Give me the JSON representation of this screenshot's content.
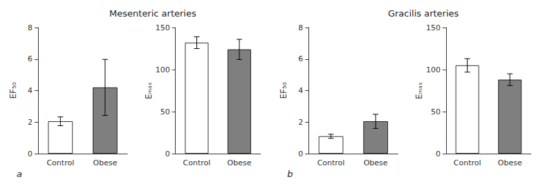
{
  "chart_data": [
    {
      "type": "bar",
      "title": "Mesenteric arteries",
      "annotations": [
        "a"
      ],
      "categories": [
        "Control",
        "Obese"
      ],
      "values": [
        2.05,
        4.2
      ],
      "errors": [
        0.28,
        1.78
      ],
      "colors": [
        "white",
        "#7f7f7f"
      ],
      "ylabel": "EF₅₀",
      "ylim": [
        0,
        8
      ],
      "yticks": [
        0,
        2,
        4,
        6,
        8
      ],
      "grid": false
    },
    {
      "type": "bar",
      "categories": [
        "Control",
        "Obese"
      ],
      "values": [
        132,
        124
      ],
      "errors": [
        7,
        12
      ],
      "colors": [
        "white",
        "#7f7f7f"
      ],
      "ylabel": "Eₘₐₓ",
      "ylim": [
        0,
        150
      ],
      "yticks": [
        0,
        50,
        100,
        150
      ],
      "grid": false
    },
    {
      "type": "bar",
      "title": "Gracilis arteries",
      "annotations": [
        "b"
      ],
      "categories": [
        "Control",
        "Obese"
      ],
      "values": [
        1.1,
        2.05
      ],
      "errors": [
        0.13,
        0.45
      ],
      "colors": [
        "white",
        "#7f7f7f"
      ],
      "ylabel": "EF₅₀",
      "ylim": [
        0,
        8
      ],
      "yticks": [
        0,
        2,
        4,
        6,
        8
      ],
      "grid": false
    },
    {
      "type": "bar",
      "categories": [
        "Control",
        "Obese"
      ],
      "values": [
        105,
        88
      ],
      "errors": [
        8,
        7
      ],
      "colors": [
        "white",
        "#7f7f7f"
      ],
      "ylabel": "Eₘₐₓ",
      "ylim": [
        0,
        150
      ],
      "yticks": [
        0,
        50,
        100,
        150
      ],
      "grid": false
    }
  ]
}
